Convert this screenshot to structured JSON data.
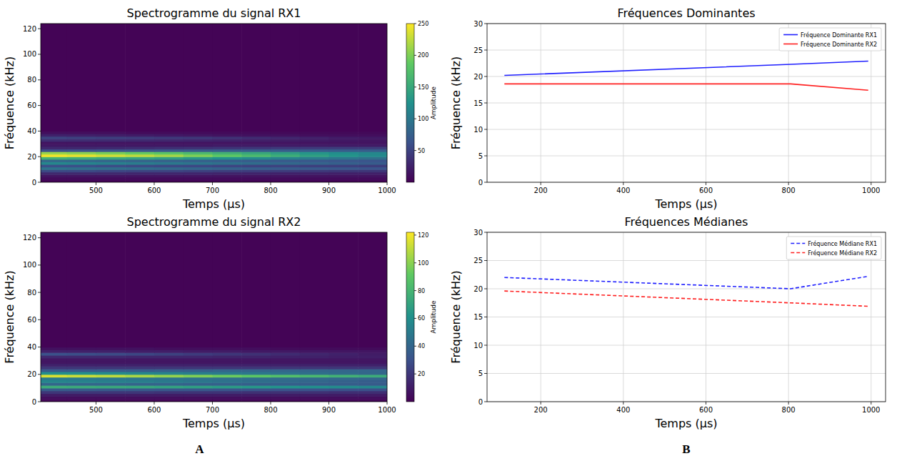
{
  "chart_data": [
    {
      "type": "heatmap",
      "title": "Spectrogramme du signal RX1",
      "x_label": "Temps (µs)",
      "y_label": "Fréquence (kHz)",
      "xlim": [
        405,
        1000
      ],
      "xticks": [
        500,
        600,
        700,
        800,
        900,
        1000
      ],
      "ylim": [
        0,
        124
      ],
      "yticks": [
        0,
        20,
        40,
        60,
        80,
        100,
        120
      ],
      "x_bins": [
        405,
        450,
        500,
        550,
        600,
        650,
        700,
        750,
        800,
        850,
        900,
        950,
        1000
      ],
      "y_bins": [
        0,
        2,
        4,
        6,
        8,
        10,
        12,
        14,
        16,
        18,
        20,
        22,
        24,
        26,
        28,
        30,
        32,
        34,
        36,
        38,
        40,
        124
      ],
      "cells": [
        [
          3,
          3,
          3,
          3,
          3,
          3,
          3,
          3,
          3,
          3,
          3,
          3
        ],
        [
          8,
          8,
          8,
          8,
          8,
          8,
          8,
          8,
          8,
          8,
          8,
          8
        ],
        [
          15,
          15,
          15,
          15,
          15,
          15,
          14,
          14,
          14,
          14,
          14,
          14
        ],
        [
          30,
          30,
          30,
          28,
          28,
          28,
          26,
          26,
          25,
          25,
          24,
          24
        ],
        [
          55,
          55,
          52,
          50,
          50,
          48,
          46,
          45,
          44,
          42,
          40,
          40
        ],
        [
          95,
          92,
          90,
          88,
          85,
          82,
          78,
          75,
          72,
          70,
          68,
          65
        ],
        [
          60,
          60,
          58,
          56,
          55,
          54,
          52,
          50,
          50,
          48,
          48,
          46
        ],
        [
          115,
          112,
          108,
          104,
          100,
          96,
          92,
          88,
          84,
          80,
          76,
          72
        ],
        [
          85,
          84,
          82,
          80,
          78,
          76,
          74,
          72,
          70,
          68,
          66,
          64
        ],
        [
          160,
          155,
          150,
          145,
          140,
          132,
          125,
          118,
          110,
          104,
          98,
          92
        ],
        [
          245,
          240,
          232,
          225,
          215,
          200,
          185,
          170,
          155,
          140,
          128,
          118
        ],
        [
          210,
          205,
          198,
          190,
          182,
          170,
          160,
          150,
          140,
          130,
          122,
          115
        ],
        [
          60,
          62,
          64,
          66,
          68,
          70,
          72,
          72,
          72,
          72,
          72,
          72
        ],
        [
          30,
          30,
          32,
          34,
          36,
          38,
          40,
          42,
          44,
          45,
          46,
          46
        ],
        [
          18,
          18,
          18,
          18,
          18,
          18,
          20,
          20,
          20,
          20,
          20,
          20
        ],
        [
          15,
          15,
          15,
          15,
          15,
          15,
          15,
          15,
          15,
          15,
          15,
          15
        ],
        [
          35,
          34,
          33,
          32,
          30,
          28,
          26,
          24,
          22,
          20,
          18,
          16
        ],
        [
          50,
          48,
          46,
          44,
          42,
          40,
          36,
          32,
          28,
          24,
          20,
          18
        ],
        [
          25,
          24,
          22,
          20,
          18,
          16,
          14,
          12,
          12,
          10,
          10,
          10
        ],
        [
          10,
          10,
          10,
          8,
          8,
          8,
          7,
          7,
          6,
          6,
          6,
          6
        ],
        [
          2,
          2,
          2,
          2,
          2,
          2,
          2,
          2,
          2,
          2,
          2,
          2
        ]
      ],
      "colorbar": {
        "label": "Amplitude",
        "range": [
          0,
          250
        ],
        "ticks": [
          50,
          100,
          150,
          200,
          250
        ]
      }
    },
    {
      "type": "heatmap",
      "title": "Spectrogramme du signal RX2",
      "x_label": "Temps (µs)",
      "y_label": "Fréquence (kHz)",
      "xlim": [
        405,
        1000
      ],
      "xticks": [
        500,
        600,
        700,
        800,
        900,
        1000
      ],
      "ylim": [
        0,
        124
      ],
      "yticks": [
        0,
        20,
        40,
        60,
        80,
        100,
        120
      ],
      "x_bins": [
        405,
        450,
        500,
        550,
        600,
        650,
        700,
        750,
        800,
        850,
        900,
        950,
        1000
      ],
      "y_bins": [
        0,
        2,
        4,
        6,
        8,
        10,
        12,
        14,
        16,
        18,
        20,
        22,
        24,
        26,
        28,
        30,
        32,
        34,
        36,
        38,
        40,
        124
      ],
      "cells": [
        [
          2,
          2,
          2,
          2,
          2,
          2,
          2,
          2,
          2,
          2,
          2,
          2
        ],
        [
          5,
          5,
          5,
          5,
          5,
          5,
          5,
          5,
          5,
          5,
          5,
          5
        ],
        [
          10,
          10,
          10,
          10,
          10,
          10,
          10,
          10,
          10,
          10,
          10,
          10
        ],
        [
          20,
          20,
          20,
          20,
          19,
          19,
          19,
          18,
          18,
          18,
          17,
          17
        ],
        [
          35,
          35,
          34,
          34,
          33,
          33,
          32,
          32,
          31,
          31,
          30,
          30
        ],
        [
          75,
          74,
          73,
          72,
          70,
          68,
          66,
          64,
          62,
          60,
          58,
          56
        ],
        [
          40,
          40,
          40,
          39,
          39,
          38,
          38,
          37,
          37,
          36,
          36,
          35
        ],
        [
          55,
          54,
          53,
          52,
          50,
          48,
          46,
          44,
          42,
          40,
          38,
          36
        ],
        [
          50,
          50,
          49,
          48,
          47,
          46,
          45,
          44,
          43,
          42,
          41,
          40
        ],
        [
          115,
          112,
          110,
          106,
          102,
          98,
          94,
          90,
          86,
          82,
          78,
          75
        ],
        [
          60,
          60,
          58,
          56,
          54,
          52,
          50,
          48,
          46,
          44,
          42,
          40
        ],
        [
          35,
          35,
          36,
          36,
          38,
          38,
          40,
          40,
          40,
          40,
          40,
          40
        ],
        [
          20,
          20,
          20,
          20,
          20,
          20,
          20,
          20,
          20,
          20,
          20,
          20
        ],
        [
          12,
          12,
          12,
          12,
          12,
          12,
          12,
          12,
          12,
          12,
          12,
          12
        ],
        [
          8,
          8,
          8,
          8,
          8,
          8,
          8,
          8,
          8,
          8,
          8,
          8
        ],
        [
          8,
          8,
          8,
          8,
          8,
          8,
          8,
          8,
          8,
          8,
          8,
          8
        ],
        [
          15,
          15,
          15,
          14,
          14,
          14,
          13,
          13,
          12,
          12,
          11,
          11
        ],
        [
          30,
          29,
          28,
          26,
          24,
          22,
          20,
          18,
          16,
          14,
          12,
          10
        ],
        [
          12,
          12,
          12,
          11,
          11,
          10,
          10,
          9,
          9,
          8,
          8,
          8
        ],
        [
          6,
          6,
          6,
          6,
          5,
          5,
          5,
          5,
          4,
          4,
          4,
          4
        ],
        [
          1,
          1,
          1,
          1,
          1,
          1,
          1,
          1,
          1,
          1,
          1,
          1
        ]
      ],
      "colorbar": {
        "label": "Amplitude",
        "range": [
          0,
          122
        ],
        "ticks": [
          20,
          40,
          60,
          80,
          100,
          120
        ]
      }
    },
    {
      "type": "line",
      "title": "Fréquences Dominantes",
      "x_label": "Temps (µs)",
      "y_label": "Fréquence (kHz)",
      "x": [
        112,
        805,
        993
      ],
      "series": [
        {
          "name": "Fréquence Dominante RX1",
          "color": "#1f1fff",
          "line_style": "solid",
          "values": [
            20.2,
            22.3,
            22.9
          ]
        },
        {
          "name": "Fréquence Dominante RX2",
          "color": "#ff1f1f",
          "line_style": "solid",
          "values": [
            18.6,
            18.6,
            17.4
          ]
        }
      ],
      "xlim": [
        70,
        1035
      ],
      "xticks": [
        200,
        400,
        600,
        800,
        1000
      ],
      "ylim": [
        0,
        30
      ],
      "yticks": [
        0,
        5,
        10,
        15,
        20,
        25,
        30
      ],
      "grid": true,
      "legend": "upper right"
    },
    {
      "type": "line",
      "title": "Fréquences Médianes",
      "x_label": "Temps (µs)",
      "y_label": "Fréquence (kHz)",
      "x": [
        112,
        805,
        993
      ],
      "series": [
        {
          "name": "Fréquence Médiane RX1",
          "color": "#1f1fff",
          "line_style": "dashed",
          "values": [
            22.0,
            20.0,
            22.2
          ]
        },
        {
          "name": "Fréquence Médiane RX2",
          "color": "#ff1f1f",
          "line_style": "dashed",
          "values": [
            19.6,
            17.5,
            16.9
          ]
        }
      ],
      "xlim": [
        70,
        1035
      ],
      "xticks": [
        200,
        400,
        600,
        800,
        1000
      ],
      "ylim": [
        0,
        30
      ],
      "yticks": [
        0,
        5,
        10,
        15,
        20,
        25,
        30
      ],
      "grid": true,
      "legend": "upper right"
    }
  ],
  "panel_labels": [
    "A",
    "B"
  ]
}
